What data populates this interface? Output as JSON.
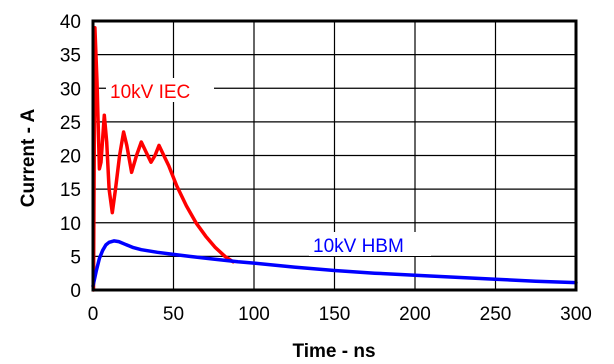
{
  "chart_data": {
    "type": "line",
    "xlabel": "Time - ns",
    "ylabel": "Current - A",
    "xlim": [
      0,
      300
    ],
    "ylim": [
      0,
      40
    ],
    "x_ticks": [
      "0",
      "50",
      "100",
      "150",
      "200",
      "250",
      "300"
    ],
    "y_ticks": [
      "0",
      "5",
      "10",
      "15",
      "20",
      "25",
      "30",
      "35",
      "40"
    ],
    "grid": true,
    "colors": {
      "iec": "#ff0000",
      "hbm": "#0000ff"
    },
    "series": [
      {
        "name": "10kV IEC",
        "color": "#ff0000",
        "points": [
          [
            0.3,
            0
          ],
          [
            1.2,
            39
          ],
          [
            2.5,
            31
          ],
          [
            4,
            18
          ],
          [
            5,
            19
          ],
          [
            7,
            26
          ],
          [
            8.5,
            22
          ],
          [
            10,
            15
          ],
          [
            12,
            11.5
          ],
          [
            14,
            15
          ],
          [
            16.5,
            20
          ],
          [
            19,
            23.5
          ],
          [
            21,
            21.5
          ],
          [
            24,
            17.5
          ],
          [
            27,
            20
          ],
          [
            30,
            22
          ],
          [
            33,
            20.5
          ],
          [
            36,
            19
          ],
          [
            38.5,
            20
          ],
          [
            41,
            21.5
          ],
          [
            44,
            20
          ],
          [
            47,
            18.5
          ],
          [
            52,
            15.5
          ],
          [
            58,
            12.5
          ],
          [
            64,
            10
          ],
          [
            70,
            8
          ],
          [
            76,
            6.3
          ],
          [
            82,
            5
          ],
          [
            87,
            4.2
          ]
        ]
      },
      {
        "name": "10kV HBM",
        "color": "#0000ff",
        "points": [
          [
            0,
            0.6
          ],
          [
            2,
            2.8
          ],
          [
            4,
            4.7
          ],
          [
            6,
            5.9
          ],
          [
            8,
            6.7
          ],
          [
            10,
            7.1
          ],
          [
            13,
            7.3
          ],
          [
            16,
            7.2
          ],
          [
            20,
            6.8
          ],
          [
            25,
            6.3
          ],
          [
            30,
            6.0
          ],
          [
            40,
            5.6
          ],
          [
            50,
            5.3
          ],
          [
            60,
            5.0
          ],
          [
            75,
            4.6
          ],
          [
            90,
            4.2
          ],
          [
            100,
            4.0
          ],
          [
            125,
            3.4
          ],
          [
            150,
            2.9
          ],
          [
            175,
            2.5
          ],
          [
            200,
            2.2
          ],
          [
            225,
            1.9
          ],
          [
            250,
            1.6
          ],
          [
            275,
            1.3
          ],
          [
            300,
            1.1
          ]
        ]
      }
    ],
    "annotations": [
      "10kV IEC",
      "10kV HBM"
    ]
  }
}
